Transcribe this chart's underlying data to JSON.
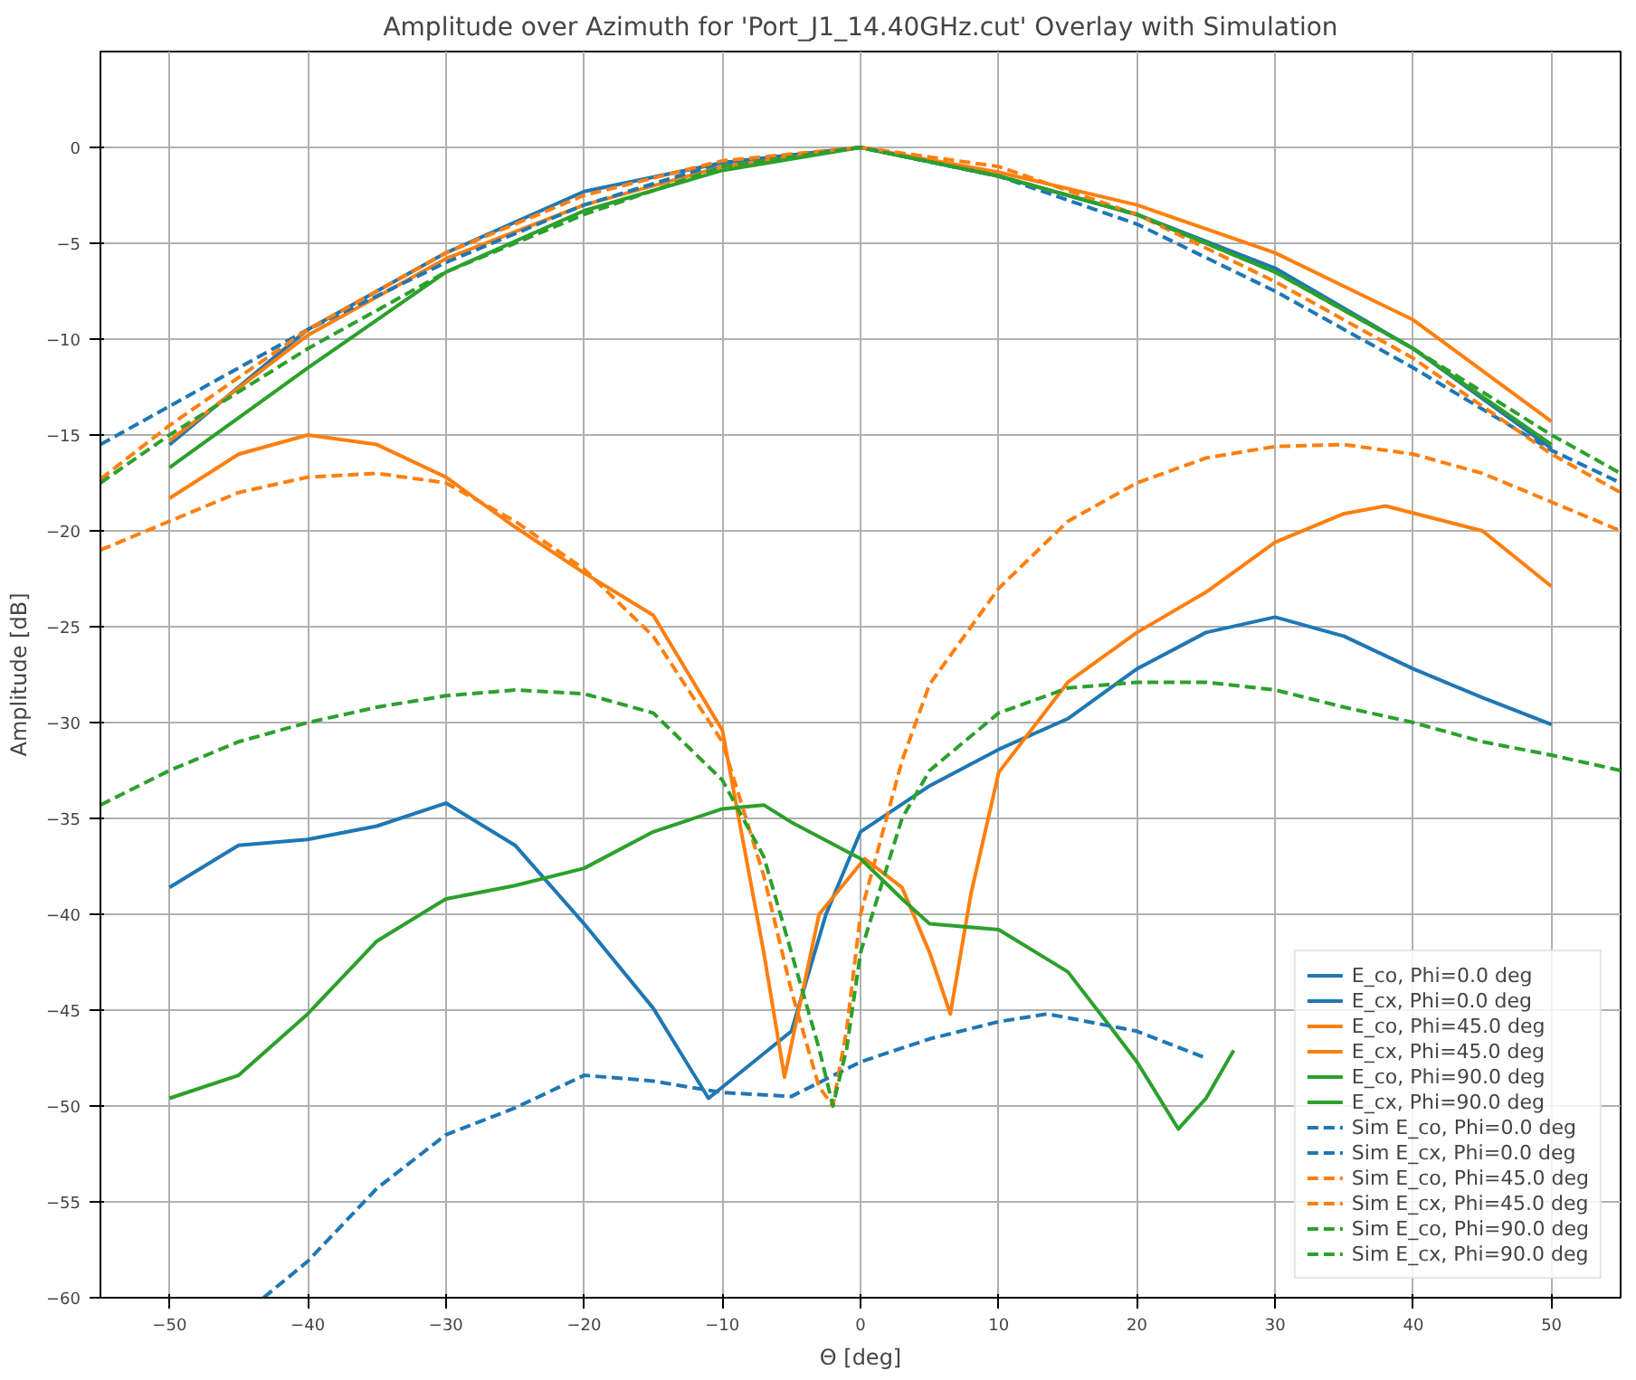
{
  "chart_data": {
    "type": "line",
    "title": "Amplitude over Azimuth for 'Port_J1_14.40GHz.cut' Overlay with Simulation",
    "xlabel": "Θ [deg]",
    "ylabel": "Amplitude [dB]",
    "xlim": [
      -55,
      55
    ],
    "ylim": [
      -60,
      5
    ],
    "xticks": [
      -50,
      -40,
      -30,
      -20,
      -10,
      0,
      10,
      20,
      30,
      40,
      50
    ],
    "yticks": [
      -60,
      -55,
      -50,
      -45,
      -40,
      -35,
      -30,
      -25,
      -20,
      -15,
      -10,
      -5,
      0
    ],
    "grid": true,
    "legend": "bottom right",
    "marker": "none",
    "series": [
      {
        "name": "E_co, Phi=0.0 deg",
        "color": "#1f77b4",
        "line_style": "solid",
        "x": [
          -50,
          -40,
          -30,
          -20,
          -10,
          0,
          10,
          20,
          30,
          40,
          50
        ],
        "values": [
          -15.5,
          -9.5,
          -5.5,
          -2.3,
          -0.8,
          0,
          -1.5,
          -3.5,
          -6.3,
          -10.5,
          -15.7
        ]
      },
      {
        "name": "E_cx, Phi=0.0 deg",
        "color": "#1f77b4",
        "line_style": "solid",
        "x": [
          -50,
          -45,
          -40,
          -35,
          -30,
          -25,
          -20,
          -15,
          -11,
          -5,
          -2.5,
          0,
          5,
          10,
          15,
          20,
          25,
          30,
          35,
          40,
          45,
          50
        ],
        "values": [
          -38.6,
          -36.4,
          -36.1,
          -35.4,
          -34.2,
          -36.4,
          -40.5,
          -44.9,
          -49.6,
          -46.1,
          -40,
          -35.7,
          -33.3,
          -31.4,
          -29.8,
          -27.2,
          -25.3,
          -24.5,
          -25.5,
          -27.2,
          -28.7,
          -30.1
        ]
      },
      {
        "name": "E_co, Phi=45.0 deg",
        "color": "#ff7f0e",
        "line_style": "solid",
        "x": [
          -50,
          -40,
          -30,
          -20,
          -10,
          0,
          10,
          20,
          30,
          40,
          50
        ],
        "values": [
          -15.3,
          -9.8,
          -5.8,
          -3,
          -1,
          0,
          -1.3,
          -3,
          -5.5,
          -9,
          -14.3
        ]
      },
      {
        "name": "E_cx, Phi=45.0 deg",
        "color": "#ff7f0e",
        "line_style": "solid",
        "x": [
          -50,
          -45,
          -40,
          -35,
          -30,
          -25,
          -20,
          -15,
          -10,
          -7,
          -5.5,
          -3,
          0.3,
          3,
          5,
          6.5,
          8,
          10,
          15,
          20,
          25,
          30,
          35,
          38,
          45,
          50
        ],
        "values": [
          -18.3,
          -16,
          -15,
          -15.5,
          -17.2,
          -19.8,
          -22.2,
          -24.4,
          -30.4,
          -42,
          -48.5,
          -40,
          -37.1,
          -38.6,
          -42,
          -45.2,
          -38.9,
          -32.6,
          -27.9,
          -25.3,
          -23.2,
          -20.6,
          -19.1,
          -18.7,
          -20,
          -22.9
        ]
      },
      {
        "name": "E_co, Phi=90.0 deg",
        "color": "#2ca02c",
        "line_style": "solid",
        "x": [
          -50,
          -40,
          -30,
          -20,
          -10,
          0,
          10,
          20,
          30,
          40,
          50
        ],
        "values": [
          -16.7,
          -11.5,
          -6.5,
          -3.3,
          -1.2,
          0,
          -1.5,
          -3.5,
          -6.5,
          -10.5,
          -15.5
        ]
      },
      {
        "name": "E_cx, Phi=90.0 deg",
        "color": "#2ca02c",
        "line_style": "solid",
        "x": [
          -50,
          -45,
          -40,
          -35,
          -30,
          -25,
          -20,
          -15,
          -10,
          -7,
          -5,
          0,
          3,
          5,
          10,
          15,
          18,
          20,
          23,
          25,
          27
        ],
        "values": [
          -49.6,
          -48.4,
          -45.2,
          -41.4,
          -39.2,
          -38.5,
          -37.6,
          -35.7,
          -34.5,
          -34.3,
          -35.2,
          -37.1,
          -39.2,
          -40.5,
          -40.8,
          -43,
          -45.8,
          -47.7,
          -51.2,
          -49.6,
          -47.1
        ]
      },
      {
        "name": "Sim E_co, Phi=0.0 deg",
        "color": "#1f77b4",
        "line_style": "dashed",
        "x": [
          -55,
          -50,
          -40,
          -30,
          -20,
          -10,
          0,
          10,
          20,
          30,
          40,
          50,
          55
        ],
        "values": [
          -15.5,
          -13.5,
          -9.5,
          -6,
          -3,
          -0.8,
          0,
          -1.5,
          -4,
          -7.5,
          -11.5,
          -15.8,
          -17.5
        ]
      },
      {
        "name": "Sim E_cx, Phi=0.0 deg",
        "color": "#1f77b4",
        "line_style": "dashed",
        "x": [
          -43.2,
          -40,
          -35,
          -30,
          -25,
          -20,
          -15,
          -10,
          -5,
          0,
          5,
          10,
          13.5,
          15,
          20,
          25
        ],
        "values": [
          -60,
          -58.1,
          -54.3,
          -51.5,
          -50.1,
          -48.4,
          -48.7,
          -49.3,
          -49.5,
          -47.7,
          -46.5,
          -45.6,
          -45.2,
          -45.4,
          -46.1,
          -47.5
        ]
      },
      {
        "name": "Sim E_co, Phi=45.0 deg",
        "color": "#ff7f0e",
        "line_style": "dashed",
        "x": [
          -55,
          -50,
          -40,
          -30,
          -20,
          -10,
          0,
          10,
          20,
          30,
          40,
          50,
          55
        ],
        "values": [
          -17.3,
          -14.5,
          -9.5,
          -5.5,
          -2.5,
          -0.7,
          0,
          -1,
          -3.5,
          -7,
          -11,
          -16,
          -18
        ]
      },
      {
        "name": "Sim E_cx, Phi=45.0 deg",
        "color": "#ff7f0e",
        "line_style": "dashed",
        "x": [
          -55,
          -50,
          -45,
          -40,
          -35,
          -30,
          -25,
          -20,
          -15,
          -10,
          -7,
          -5,
          -3,
          -2,
          -1,
          0,
          3,
          5,
          10,
          15,
          20,
          25,
          30,
          35,
          40,
          45,
          50,
          55
        ],
        "values": [
          -21,
          -19.5,
          -18,
          -17.2,
          -17,
          -17.5,
          -19.5,
          -22,
          -25.5,
          -31,
          -38,
          -44,
          -49,
          -50,
          -46,
          -40,
          -32,
          -28,
          -23,
          -19.5,
          -17.5,
          -16.2,
          -15.6,
          -15.5,
          -16,
          -17,
          -18.5,
          -20
        ]
      },
      {
        "name": "Sim E_co, Phi=90.0 deg",
        "color": "#2ca02c",
        "line_style": "dashed",
        "x": [
          -55,
          -50,
          -40,
          -30,
          -20,
          -10,
          0,
          10,
          20,
          30,
          40,
          50,
          55
        ],
        "values": [
          -17.5,
          -15,
          -10.5,
          -6.5,
          -3.5,
          -1,
          0,
          -1.5,
          -3.5,
          -6.5,
          -10.5,
          -15,
          -17
        ]
      },
      {
        "name": "Sim E_cx, Phi=90.0 deg",
        "color": "#2ca02c",
        "line_style": "dashed",
        "x": [
          -55,
          -50,
          -45,
          -40,
          -35,
          -30,
          -25,
          -20,
          -15,
          -10,
          -7,
          -5,
          -3,
          -2,
          -1,
          0,
          3,
          5,
          10,
          15,
          20,
          25,
          30,
          35,
          40,
          45,
          50,
          55
        ],
        "values": [
          -34.3,
          -32.5,
          -31,
          -30,
          -29.2,
          -28.6,
          -28.3,
          -28.5,
          -29.5,
          -33,
          -37,
          -42,
          -47,
          -50,
          -47,
          -42,
          -35,
          -32.5,
          -29.5,
          -28.2,
          -27.9,
          -27.9,
          -28.3,
          -29.2,
          -30,
          -31,
          -31.7,
          -32.5
        ]
      }
    ]
  }
}
